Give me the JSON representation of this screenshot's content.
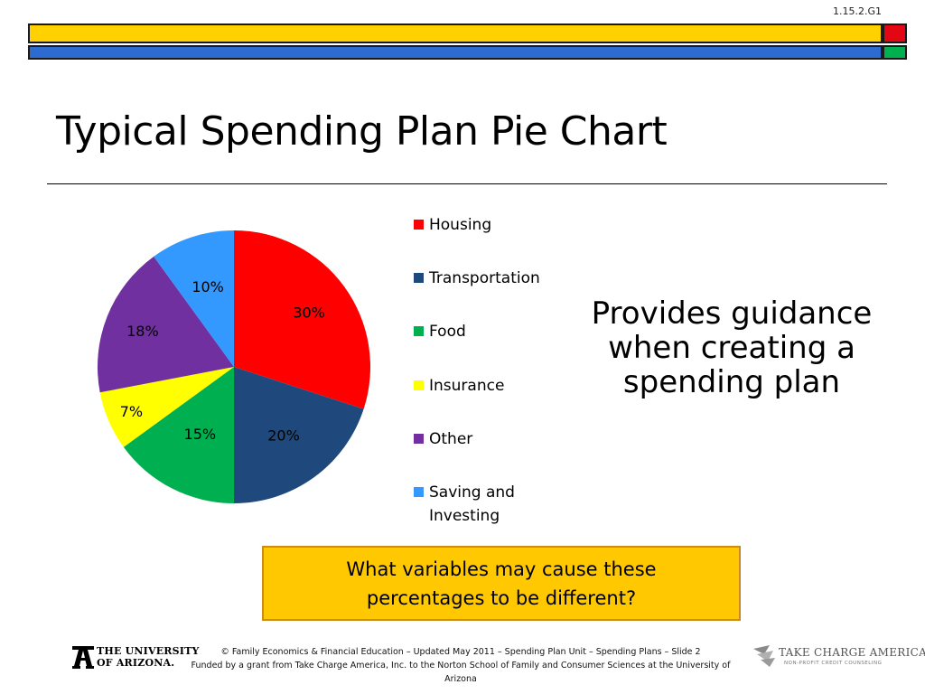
{
  "slide_code": "1.15.2.G1",
  "title": "Typical Spending Plan Pie Chart",
  "chart_data": {
    "type": "pie",
    "title": "",
    "start_angle_deg": 0,
    "direction": "clockwise",
    "legend_placement": "right",
    "slices": [
      {
        "name": "Housing",
        "value": 30,
        "label": "30%",
        "color": "#FF0000"
      },
      {
        "name": "Transportation",
        "value": 20,
        "label": "20%",
        "color": "#1F497D"
      },
      {
        "name": "Food",
        "value": 15,
        "label": "15%",
        "color": "#00B050"
      },
      {
        "name": "Insurance",
        "value": 7,
        "label": "7%",
        "color": "#FFFF00"
      },
      {
        "name": "Other",
        "value": 18,
        "label": "18%",
        "color": "#7030A0"
      },
      {
        "name": "Saving and Investing",
        "value": 10,
        "label": "10%",
        "color": "#3399FF"
      }
    ]
  },
  "callout": {
    "line1": "Provides guidance",
    "line2": "when creating a",
    "line3": "spending plan"
  },
  "question": {
    "line1": "What variables may cause these",
    "line2": "percentages to be different?"
  },
  "footer": {
    "line1": "© Family Economics & Financial Education – Updated May 2011 – Spending Plan Unit – Spending Plans – Slide 2",
    "line2": "Funded by a grant from Take Charge America, Inc. to the Norton School of Family and Consumer Sciences at the University of Arizona"
  },
  "logos": {
    "university_line1": "THE UNIVERSITY",
    "university_line2": "OF ARIZONA.",
    "tca_name": "TAKE CHARGE AMERICA®",
    "tca_sub": "NON-PROFIT CREDIT COUNSELING"
  },
  "colors": {
    "bar_yellow": "#FFD100",
    "bar_blue": "#2E6BD1",
    "corner_red": "#E30613",
    "corner_green": "#00B050",
    "question_box": "#FFC800"
  }
}
